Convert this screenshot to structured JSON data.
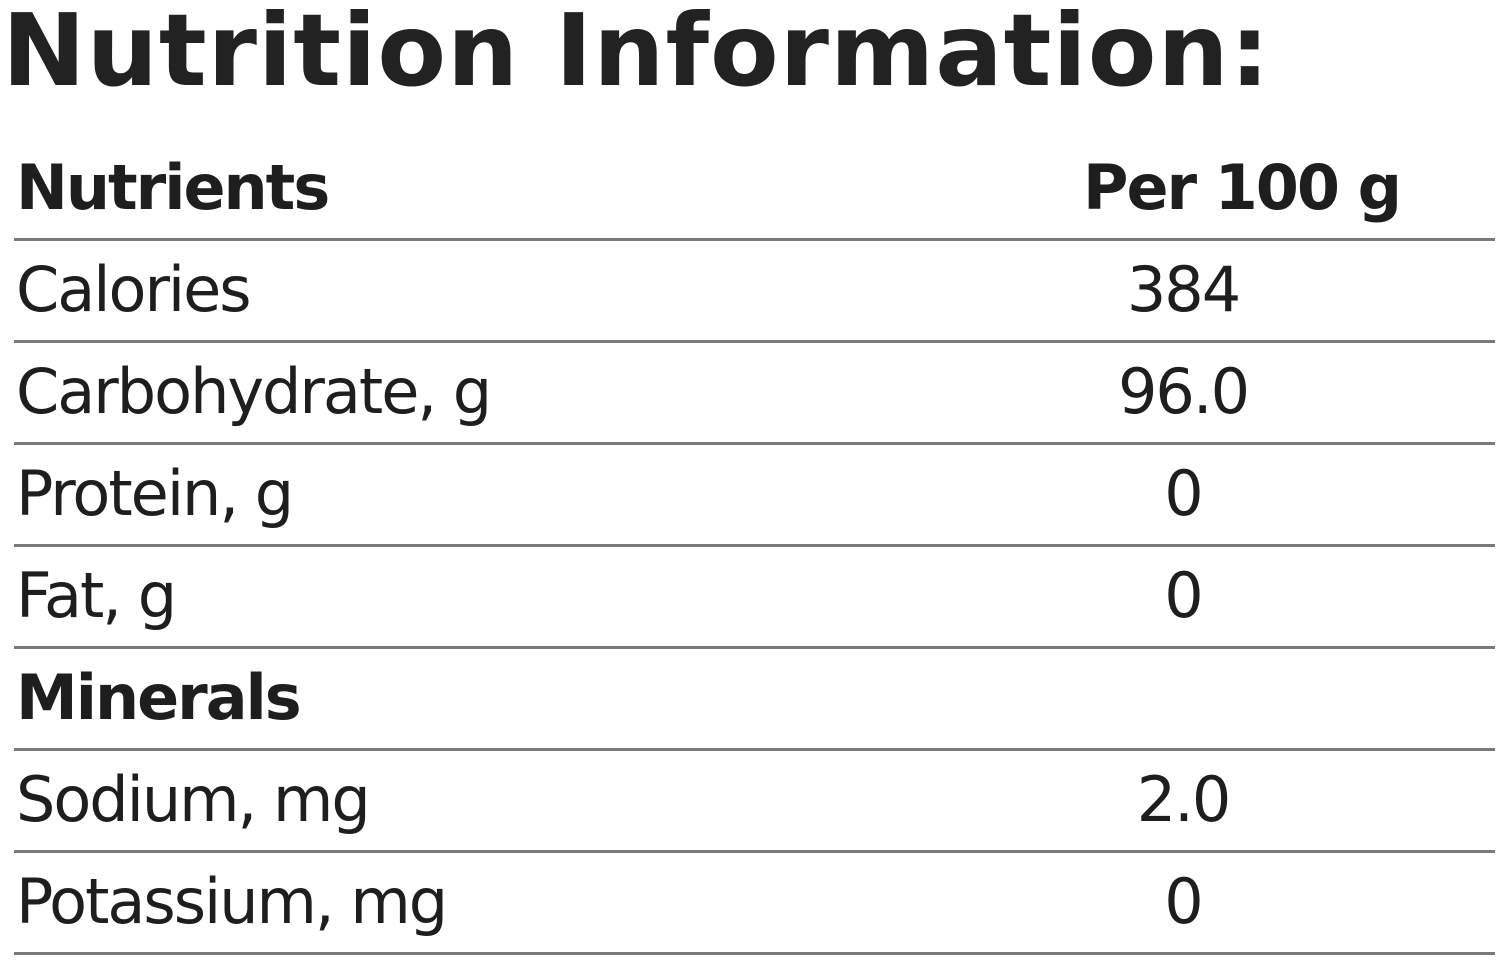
{
  "title": "Nutrition Information:",
  "header": {
    "label": "Nutrients",
    "value": "Per 100 g"
  },
  "rows": [
    {
      "label": "Calories",
      "value": "384"
    },
    {
      "label": "Carbohydrate, g",
      "value": "96.0"
    },
    {
      "label": "Protein, g",
      "value": "0"
    },
    {
      "label": "Fat, g",
      "value": "0"
    },
    {
      "label": "Minerals",
      "value": ""
    },
    {
      "label": "Sodium, mg",
      "value": "2.0"
    },
    {
      "label": "Potassium, mg",
      "value": "0"
    }
  ]
}
